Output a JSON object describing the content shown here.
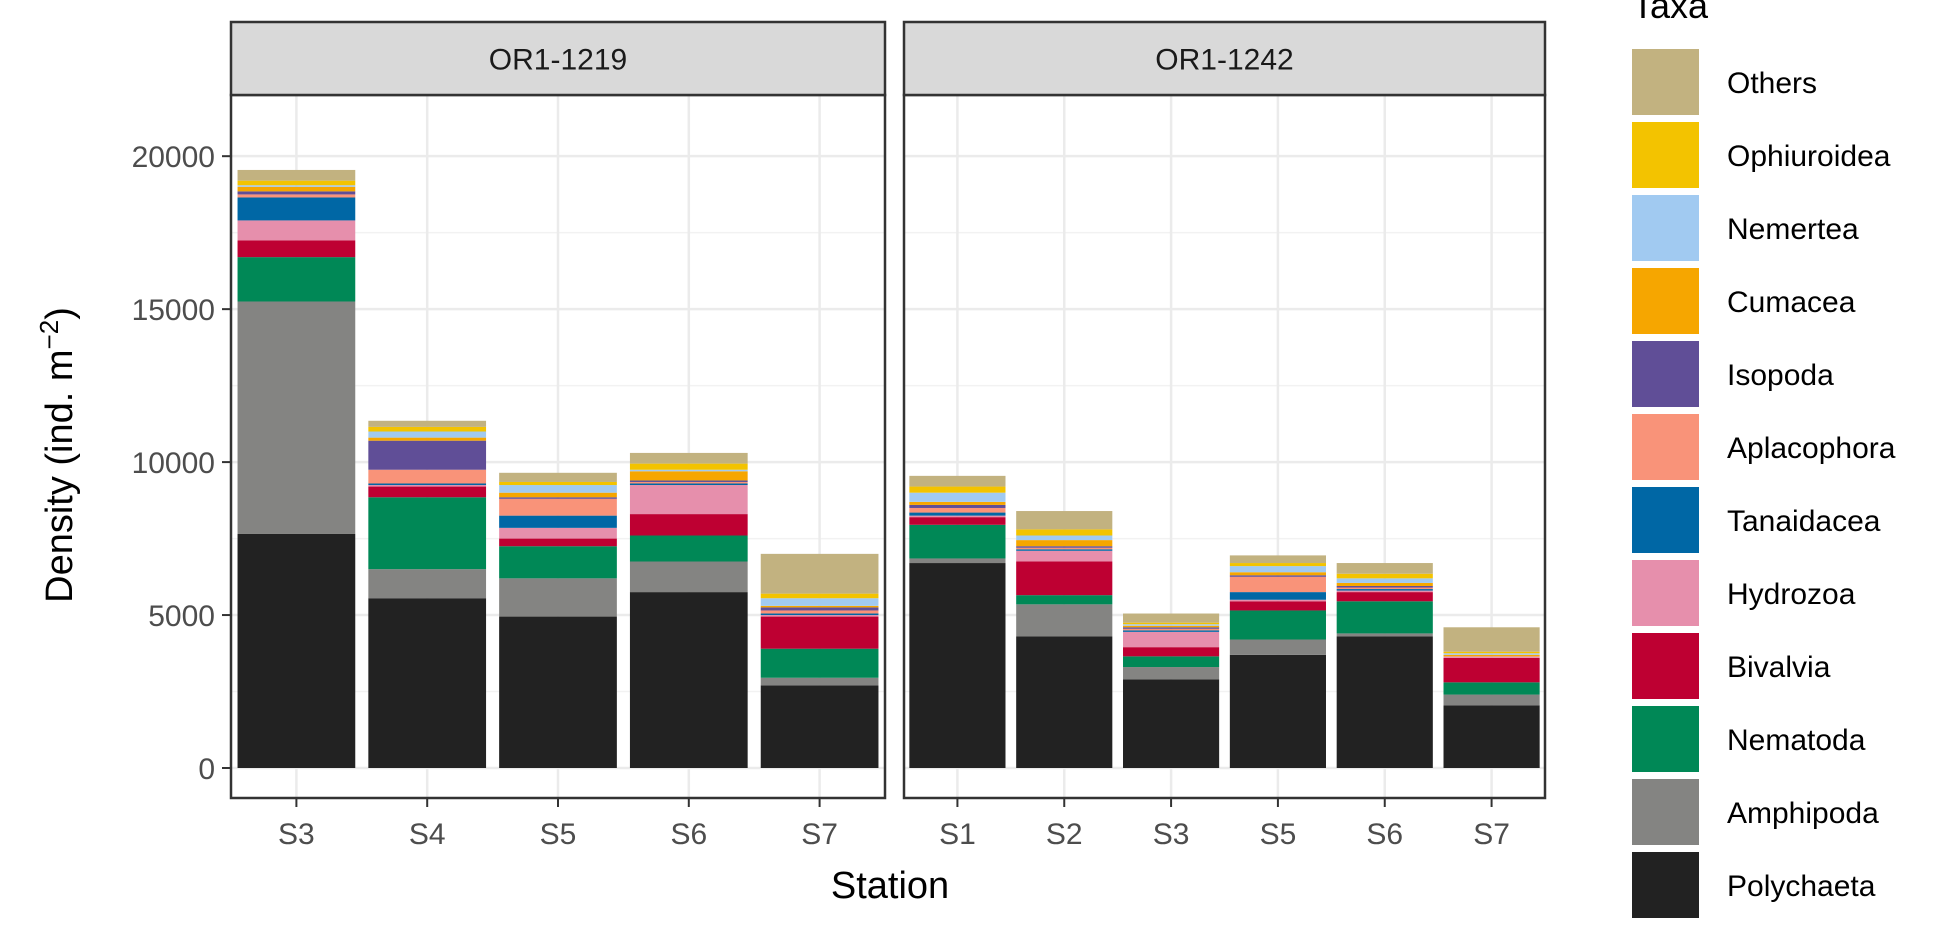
{
  "chart_data": {
    "type": "bar",
    "stacked": true,
    "ylabel_main": "Density (ind. m",
    "ylabel_sup": "−2",
    "ylabel_close": ")",
    "xlabel": "Station",
    "ylim": [
      0,
      22000
    ],
    "yticks": [
      "0",
      "5000",
      "10000",
      "15000",
      "20000"
    ],
    "ytick_values": [
      0,
      5000,
      10000,
      15000,
      20000
    ],
    "grid": true,
    "legend": {
      "title": "Taxa",
      "placement": "right",
      "items": [
        {
          "name": "Others",
          "color": "#c2b280"
        },
        {
          "name": "Ophiuroidea",
          "color": "#f3c300"
        },
        {
          "name": "Nemertea",
          "color": "#a1caf1"
        },
        {
          "name": "Cumacea",
          "color": "#f6a600"
        },
        {
          "name": "Isopoda",
          "color": "#604e97"
        },
        {
          "name": "Aplacophora",
          "color": "#f99379"
        },
        {
          "name": "Tanaidacea",
          "color": "#0067a5"
        },
        {
          "name": "Hydrozoa",
          "color": "#e68fac"
        },
        {
          "name": "Bivalvia",
          "color": "#be0032"
        },
        {
          "name": "Nematoda",
          "color": "#008856"
        },
        {
          "name": "Amphipoda",
          "color": "#848482"
        },
        {
          "name": "Polychaeta",
          "color": "#222222"
        }
      ]
    },
    "stack_order": [
      "Polychaeta",
      "Amphipoda",
      "Nematoda",
      "Bivalvia",
      "Hydrozoa",
      "Tanaidacea",
      "Aplacophora",
      "Isopoda",
      "Cumacea",
      "Nemertea",
      "Ophiuroidea",
      "Others"
    ],
    "panels": [
      {
        "title": "OR1-1219",
        "categories": [
          "S3",
          "S4",
          "S5",
          "S6",
          "S7"
        ],
        "series": [
          {
            "name": "Polychaeta",
            "values": [
              7650,
              5550,
              4950,
              5750,
              2700
            ]
          },
          {
            "name": "Amphipoda",
            "values": [
              7600,
              950,
              1250,
              1000,
              250
            ]
          },
          {
            "name": "Nematoda",
            "values": [
              1450,
              2350,
              1050,
              850,
              950
            ]
          },
          {
            "name": "Bivalvia",
            "values": [
              550,
              350,
              250,
              700,
              1050
            ]
          },
          {
            "name": "Hydrozoa",
            "values": [
              650,
              50,
              350,
              950,
              50
            ]
          },
          {
            "name": "Tanaidacea",
            "values": [
              750,
              50,
              400,
              50,
              50
            ]
          },
          {
            "name": "Aplacophora",
            "values": [
              100,
              450,
              550,
              50,
              100
            ]
          },
          {
            "name": "Isopoda",
            "values": [
              100,
              950,
              50,
              50,
              100
            ]
          },
          {
            "name": "Cumacea",
            "values": [
              150,
              100,
              150,
              300,
              50
            ]
          },
          {
            "name": "Nemertea",
            "values": [
              50,
              200,
              250,
              50,
              250
            ]
          },
          {
            "name": "Ophiuroidea",
            "values": [
              150,
              150,
              100,
              200,
              150
            ]
          },
          {
            "name": "Others",
            "values": [
              350,
              200,
              300,
              350,
              1300
            ]
          }
        ]
      },
      {
        "title": "OR1-1242",
        "categories": [
          "S1",
          "S2",
          "S3",
          "S5",
          "S6",
          "S7"
        ],
        "series": [
          {
            "name": "Polychaeta",
            "values": [
              6700,
              4300,
              2900,
              3700,
              4300,
              2050
            ]
          },
          {
            "name": "Amphipoda",
            "values": [
              150,
              1050,
              400,
              500,
              100,
              350
            ]
          },
          {
            "name": "Nematoda",
            "values": [
              1100,
              300,
              350,
              950,
              1050,
              400
            ]
          },
          {
            "name": "Bivalvia",
            "values": [
              250,
              1100,
              300,
              300,
              300,
              800
            ]
          },
          {
            "name": "Hydrozoa",
            "values": [
              50,
              350,
              500,
              50,
              50,
              50
            ]
          },
          {
            "name": "Tanaidacea",
            "values": [
              100,
              50,
              50,
              250,
              50,
              0
            ]
          },
          {
            "name": "Aplacophora",
            "values": [
              150,
              50,
              50,
              500,
              50,
              0
            ]
          },
          {
            "name": "Isopoda",
            "values": [
              100,
              50,
              50,
              50,
              50,
              0
            ]
          },
          {
            "name": "Cumacea",
            "values": [
              100,
              200,
              50,
              100,
              100,
              50
            ]
          },
          {
            "name": "Nemertea",
            "values": [
              300,
              150,
              50,
              200,
              150,
              50
            ]
          },
          {
            "name": "Ophiuroidea",
            "values": [
              200,
              200,
              50,
              100,
              150,
              50
            ]
          },
          {
            "name": "Others",
            "values": [
              350,
              600,
              300,
              250,
              350,
              800
            ]
          }
        ]
      }
    ]
  }
}
